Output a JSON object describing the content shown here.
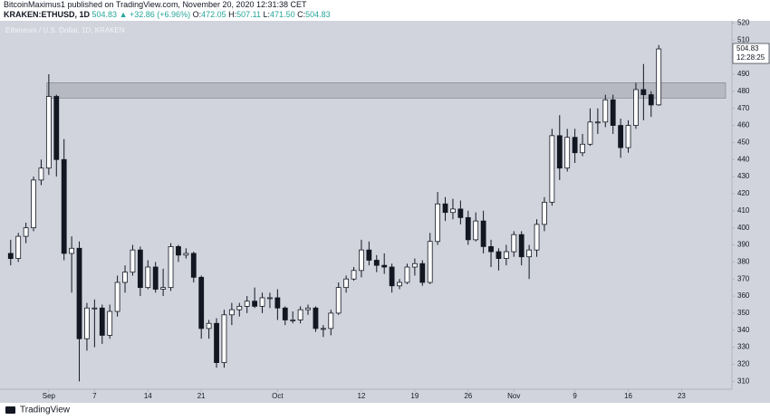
{
  "header": {
    "author_line": "BitcoinMaximus1 published on TradingView.com, November 20, 2020 12:31:38 CET",
    "symbol": "KRAKEN:ETHUSD, 1D",
    "last": "504.83",
    "arrow": "▲",
    "change": "+32.86 (+6.96%)",
    "o_label": "O:",
    "o": "472.05",
    "h_label": "H:",
    "h": "507.11",
    "l_label": "L:",
    "l": "471.50",
    "c_label": "C:",
    "c": "504.83"
  },
  "footer": {
    "brand": "TradingView"
  },
  "chart_data": {
    "type": "candlestick",
    "title": "Ethereum / U.S. Dollar, 1D, KRAKEN",
    "up_color": "#ffffff",
    "down_color": "#131722",
    "edge_color": "#131722",
    "band_color": "#9598a1",
    "last_price_label": "504.83",
    "countdown": "12:28:25",
    "band": [
      476,
      485
    ],
    "xlim": [
      -6.4,
      89.6
    ],
    "xticks": [
      {
        "value": 0,
        "label": "Sep"
      },
      {
        "value": 6,
        "label": "7"
      },
      {
        "value": 13,
        "label": "14"
      },
      {
        "value": 20,
        "label": "21"
      },
      {
        "value": 30,
        "label": "Oct"
      },
      {
        "value": 41,
        "label": "12"
      },
      {
        "value": 48,
        "label": "19"
      },
      {
        "value": 55,
        "label": "26"
      },
      {
        "value": 61,
        "label": "Nov"
      },
      {
        "value": 69,
        "label": "9"
      },
      {
        "value": 76,
        "label": "16"
      },
      {
        "value": 83,
        "label": "23"
      }
    ],
    "ylim": [
      305.4,
      521.3
    ],
    "yticks": [
      310,
      320,
      330,
      340,
      350,
      360,
      370,
      380,
      390,
      400,
      410,
      420,
      430,
      440,
      450,
      460,
      470,
      480,
      490,
      500,
      510,
      520
    ],
    "x": [
      -5,
      -4,
      -3,
      -2,
      -1,
      0,
      1,
      2,
      3,
      4,
      5,
      6,
      7,
      8,
      9,
      10,
      11,
      12,
      13,
      14,
      15,
      16,
      17,
      18,
      19,
      20,
      21,
      22,
      23,
      24,
      25,
      26,
      27,
      28,
      29,
      30,
      31,
      32,
      33,
      34,
      35,
      36,
      37,
      38,
      39,
      40,
      41,
      42,
      43,
      44,
      45,
      46,
      47,
      48,
      49,
      50,
      51,
      52,
      53,
      54,
      55,
      56,
      57,
      58,
      59,
      60,
      61,
      62,
      63,
      64,
      65,
      66,
      67,
      68,
      69,
      70,
      71,
      72,
      73,
      74,
      75,
      76,
      77,
      78,
      79,
      80
    ],
    "open": [
      385,
      382,
      395,
      400,
      428,
      435,
      477,
      440,
      385,
      388,
      335,
      353,
      353,
      337,
      351,
      368,
      374,
      387,
      365,
      377,
      364,
      365,
      389,
      384,
      385,
      371,
      341,
      344,
      321,
      349,
      352,
      354,
      357,
      354,
      359,
      359,
      353,
      346,
      346,
      352,
      353,
      341,
      341,
      350,
      365,
      370,
      375,
      387,
      381,
      378,
      377,
      366,
      368,
      377,
      379,
      368,
      392,
      414,
      409,
      411,
      406,
      393,
      404,
      389,
      386,
      382,
      386,
      396,
      383,
      387,
      402,
      415,
      454,
      435,
      453,
      444,
      449,
      462,
      462,
      475,
      460,
      447,
      460,
      481,
      478,
      472.05
    ],
    "high": [
      393,
      397,
      403,
      430,
      440,
      490,
      478,
      452,
      395,
      392,
      356,
      358,
      355,
      355,
      372,
      378,
      390,
      389,
      381,
      380,
      376,
      391,
      390,
      388,
      386,
      372,
      346,
      347,
      352,
      356,
      356,
      360,
      365,
      362,
      362,
      364,
      354,
      351,
      354,
      355,
      354,
      343,
      352,
      368,
      372,
      377,
      393,
      392,
      384,
      385,
      379,
      370,
      379,
      382,
      381,
      397,
      421,
      418,
      417,
      416,
      410,
      409,
      410,
      393,
      388,
      390,
      398,
      398,
      390,
      405,
      418,
      458,
      466,
      458,
      458,
      455,
      470,
      470,
      478,
      478,
      464,
      463,
      485,
      496,
      480,
      507.11
    ],
    "low": [
      378,
      380,
      391,
      398,
      425,
      431,
      430,
      381,
      362,
      310,
      328,
      330,
      332,
      335,
      348,
      362,
      372,
      360,
      364,
      362,
      360,
      363,
      380,
      382,
      368,
      335,
      335,
      318,
      318,
      343,
      348,
      350,
      353,
      350,
      353,
      346,
      343,
      344,
      344,
      349,
      339,
      336,
      337,
      349,
      362,
      369,
      371,
      378,
      374,
      373,
      362,
      364,
      367,
      372,
      366,
      367,
      390,
      404,
      405,
      402,
      390,
      392,
      385,
      377,
      375,
      378,
      383,
      378,
      370,
      383,
      398,
      413,
      428,
      433,
      438,
      442,
      448,
      455,
      459,
      455,
      441,
      444,
      458,
      463,
      465,
      471.5
    ],
    "close": [
      382,
      395,
      400,
      428,
      435,
      477,
      440,
      385,
      388,
      335,
      353,
      353,
      337,
      351,
      368,
      374,
      387,
      365,
      377,
      364,
      365,
      389,
      384,
      385,
      371,
      341,
      344,
      321,
      349,
      352,
      354,
      357,
      354,
      359,
      359,
      353,
      346,
      346,
      352,
      353,
      341,
      341,
      350,
      365,
      370,
      375,
      387,
      381,
      378,
      377,
      366,
      368,
      377,
      379,
      368,
      392,
      414,
      409,
      411,
      406,
      393,
      404,
      389,
      386,
      382,
      386,
      396,
      383,
      387,
      402,
      415,
      454,
      435,
      453,
      444,
      449,
      462,
      462,
      475,
      460,
      447,
      460,
      481,
      478,
      472,
      504.83
    ]
  }
}
